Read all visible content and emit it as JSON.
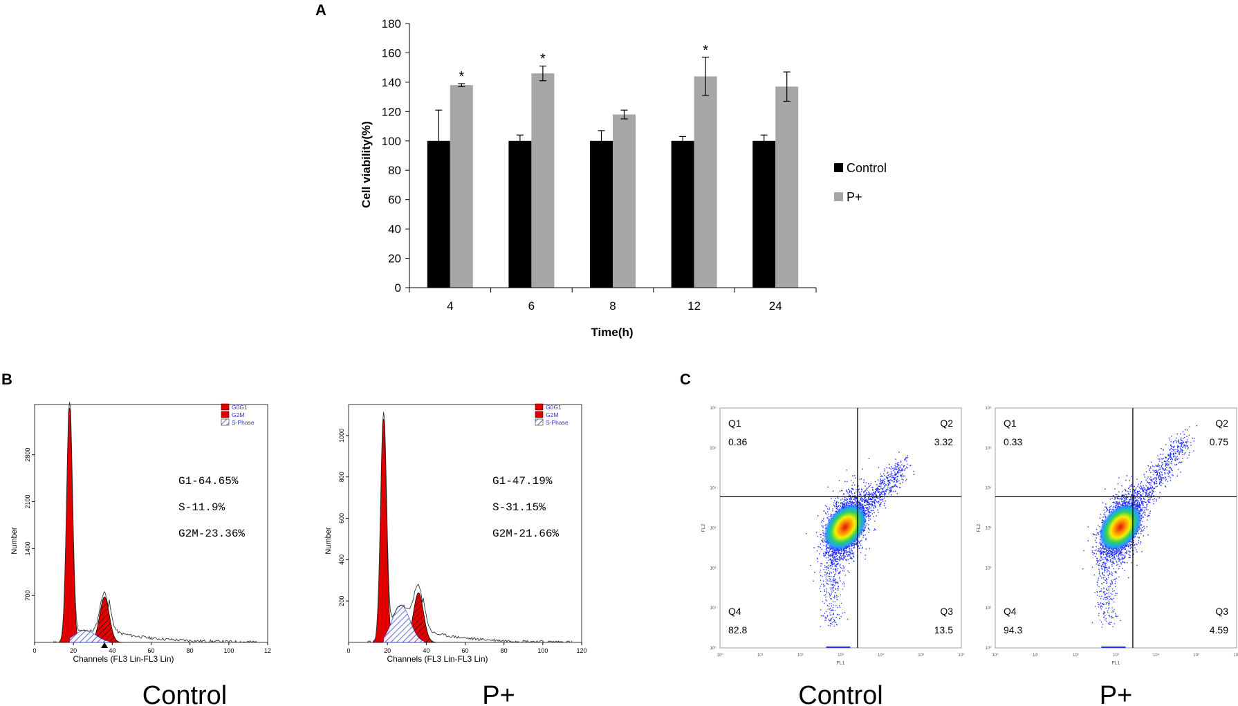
{
  "panels": {
    "a": {
      "letter": "A"
    },
    "b": {
      "letter": "B"
    },
    "c": {
      "letter": "C"
    }
  },
  "colors": {
    "control": "#000000",
    "p_plus": "#a6a6a6",
    "peak_red": "#e00000",
    "sphase_blue": "#2a3fd6",
    "legend_text_blue": "#3232c8"
  },
  "chart_data": [
    {
      "id": "A",
      "type": "bar",
      "title": "",
      "xlabel": "Time(h)",
      "ylabel": "Cell viability(%)",
      "ylim": [
        0,
        180
      ],
      "yticks": [
        0,
        20,
        40,
        60,
        80,
        100,
        120,
        140,
        160,
        180
      ],
      "categories": [
        "4",
        "6",
        "8",
        "12",
        "24"
      ],
      "series": [
        {
          "name": "Control",
          "values": [
            100,
            100,
            100,
            100,
            100
          ],
          "errors": [
            21,
            4,
            7,
            3,
            4
          ]
        },
        {
          "name": "P+",
          "values": [
            138,
            146,
            118,
            144,
            137
          ],
          "errors": [
            1,
            5,
            3,
            13,
            10
          ]
        }
      ],
      "significance": [
        "*",
        "*",
        "",
        "*",
        ""
      ],
      "legend": [
        "Control",
        "P+"
      ],
      "legend_position": "right"
    },
    {
      "id": "B-control",
      "type": "area",
      "group_label": "Control",
      "xlabel": "Channels (FL3 Lin-FL3 Lin)",
      "ylabel": "Number",
      "xticks": [
        "0",
        "20",
        "40",
        "60",
        "80",
        "100",
        "12"
      ],
      "yticks": [
        "700",
        "1400",
        "2100",
        "2800"
      ],
      "ymax": 3550,
      "legend": [
        "G0G1",
        "G2M",
        "S-Phase"
      ],
      "stats": [
        "G1-64.65%",
        "S-11.9%",
        "G2M-23.36%"
      ],
      "peaks": [
        {
          "phase": "G0G1",
          "center": 18,
          "height": 3500,
          "sigma": 1.5
        },
        {
          "phase": "G2M",
          "center": 36,
          "height": 680,
          "sigma": 2.5
        },
        {
          "phase": "S-Phase",
          "center": 26,
          "height": 180,
          "sigma": 5.5
        }
      ]
    },
    {
      "id": "B-p-plus",
      "type": "area",
      "group_label": "P+",
      "xlabel": "Channels (FL3 Lin-FL3 Lin)",
      "ylabel": "Number",
      "xticks": [
        "0",
        "20",
        "40",
        "60",
        "80",
        "100",
        "120"
      ],
      "yticks": [
        "200",
        "400",
        "600",
        "800",
        "1000"
      ],
      "ymax": 1150,
      "legend": [
        "G0G1",
        "G2M",
        "S-Phase"
      ],
      "stats": [
        "G1-47.19%",
        "S-31.15%",
        "G2M-21.66%"
      ],
      "peaks": [
        {
          "phase": "G0G1",
          "center": 18,
          "height": 1080,
          "sigma": 1.5
        },
        {
          "phase": "G2M",
          "center": 36,
          "height": 240,
          "sigma": 2.6
        },
        {
          "phase": "S-Phase",
          "center": 27,
          "height": 180,
          "sigma": 4.5
        }
      ]
    },
    {
      "id": "C-control",
      "type": "scatter",
      "group_label": "Control",
      "xlabel": "FL1",
      "ylabel": "FL2",
      "quadrants": [
        {
          "name": "Q1",
          "value": "0.36"
        },
        {
          "name": "Q2",
          "value": "3.32"
        },
        {
          "name": "Q3",
          "value": "13.5"
        },
        {
          "name": "Q4",
          "value": "82.8"
        }
      ]
    },
    {
      "id": "C-p-plus",
      "type": "scatter",
      "group_label": "P+",
      "xlabel": "FL1",
      "ylabel": "FL2",
      "quadrants": [
        {
          "name": "Q1",
          "value": "0.33"
        },
        {
          "name": "Q2",
          "value": "0.75"
        },
        {
          "name": "Q3",
          "value": "4.59"
        },
        {
          "name": "Q4",
          "value": "94.3"
        }
      ]
    }
  ],
  "decades_label": [
    "10⁰",
    "10¹",
    "10²",
    "10³",
    "10⁴",
    "10⁵",
    "10⁶"
  ]
}
